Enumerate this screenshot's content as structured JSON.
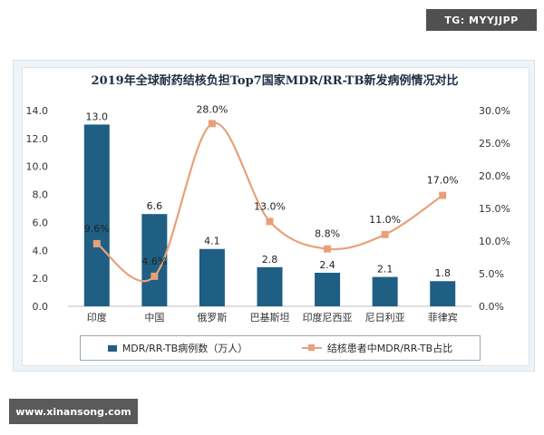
{
  "watermark": "TG: MYYJJPP",
  "site_tag": "www.xinansong.com",
  "colors": {
    "bar": "#1f5f84",
    "line": "#e8a07a",
    "title": "#1f2e44"
  },
  "chart_data": {
    "type": "bar",
    "title": "2019年全球耐药结核负担Top7国家MDR/RR-TB新发病例情况对比",
    "categories": [
      "印度",
      "中国",
      "俄罗斯",
      "巴基斯坦",
      "印度尼西亚",
      "尼日利亚",
      "菲律宾"
    ],
    "series": [
      {
        "name": "MDR/RR-TB病例数（万人）",
        "type": "bar",
        "axis": "left",
        "values": [
          13.0,
          6.6,
          4.1,
          2.8,
          2.4,
          2.1,
          1.8
        ],
        "labels": [
          "13.0",
          "6.6",
          "4.1",
          "2.8",
          "2.4",
          "2.1",
          "1.8"
        ]
      },
      {
        "name": "结核患者中MDR/RR-TB占比",
        "type": "line",
        "smooth": true,
        "axis": "right",
        "values": [
          9.6,
          4.6,
          28.0,
          13.0,
          8.8,
          11.0,
          17.0
        ],
        "labels": [
          "9.6%",
          "4.6%",
          "28.0%",
          "13.0%",
          "8.8%",
          "11.0%",
          "17.0%"
        ]
      }
    ],
    "y_left": {
      "ylim": [
        0,
        14
      ],
      "ticks": [
        "0.0",
        "2.0",
        "4.0",
        "6.0",
        "8.0",
        "10.0",
        "12.0",
        "14.0"
      ]
    },
    "y_right": {
      "ylim": [
        0,
        30
      ],
      "ticks": [
        "0.0%",
        "5.0%",
        "10.0%",
        "15.0%",
        "20.0%",
        "25.0%",
        "30.0%"
      ]
    },
    "grid": false,
    "legend": "bottom"
  }
}
